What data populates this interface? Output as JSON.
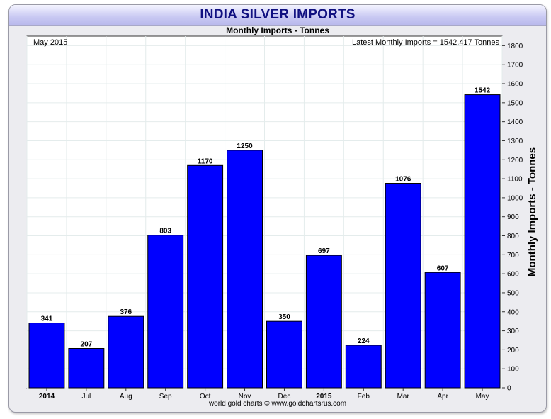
{
  "header": {
    "title": "INDIA SILVER IMPORTS",
    "subtitle": "Monthly Imports - Tonnes"
  },
  "footer": {
    "credit": "world gold charts © www.goldchartsrus.com"
  },
  "colors": {
    "bar": "#0000ff",
    "title": "#101080",
    "grid": "#e4ecec"
  },
  "chart_data": {
    "type": "bar",
    "title": "INDIA SILVER IMPORTS",
    "subtitle": "Monthly Imports - Tonnes",
    "corner_left": "May 2015",
    "corner_right": "Latest Monthly Imports = 1542.417 Tonnes",
    "ylabel": "Monthly Imports - Tonnes",
    "yaxis_side": "right",
    "ylim": [
      0,
      1850
    ],
    "yticks": [
      0,
      100,
      200,
      300,
      400,
      500,
      600,
      700,
      800,
      900,
      1000,
      1100,
      1200,
      1300,
      1400,
      1500,
      1600,
      1700,
      1800
    ],
    "grid": true,
    "categories": [
      "2014",
      "Jul",
      "Aug",
      "Sep",
      "Oct",
      "Nov",
      "Dec",
      "2015",
      "Feb",
      "Mar",
      "Apr",
      "May"
    ],
    "bold_categories": [
      "2014",
      "2015"
    ],
    "values": [
      341,
      207,
      376,
      803,
      1170,
      1250,
      350,
      697,
      224,
      1076,
      607,
      1542
    ],
    "data_labels": [
      "341",
      "207",
      "376",
      "803",
      "1170",
      "1250",
      "350",
      "697",
      "224",
      "1076",
      "607",
      "1542"
    ]
  }
}
